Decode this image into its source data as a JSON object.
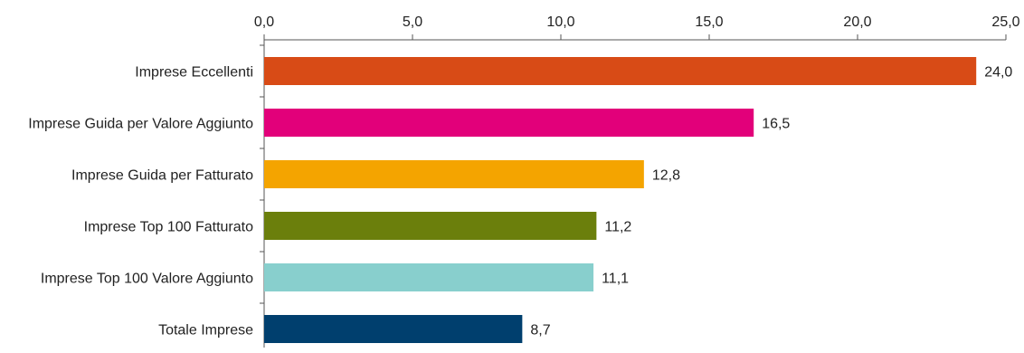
{
  "chart_data": {
    "type": "bar",
    "orientation": "horizontal",
    "title": "",
    "xlabel": "",
    "ylabel": "",
    "xlim": [
      0,
      25
    ],
    "x_ticks": [
      "0,0",
      "5,0",
      "10,0",
      "15,0",
      "20,0",
      "25,0"
    ],
    "x_axis_position": "top",
    "grid": false,
    "legend": "none",
    "categories": [
      "Imprese Eccellenti",
      "Imprese Guida per Valore Aggiunto",
      "Imprese Guida per Fatturato",
      "Imprese Top 100 Fatturato",
      "Imprese Top 100 Valore Aggiunto",
      "Totale Imprese"
    ],
    "values": [
      24.0,
      16.5,
      12.8,
      11.2,
      11.1,
      8.7
    ],
    "value_labels": [
      "24,0",
      "16,5",
      "12,8",
      "11,2",
      "11,1",
      "8,7"
    ],
    "colors": [
      "#d84b16",
      "#e2007a",
      "#f4a400",
      "#6b7f0c",
      "#88cfcd",
      "#003f6e"
    ]
  }
}
